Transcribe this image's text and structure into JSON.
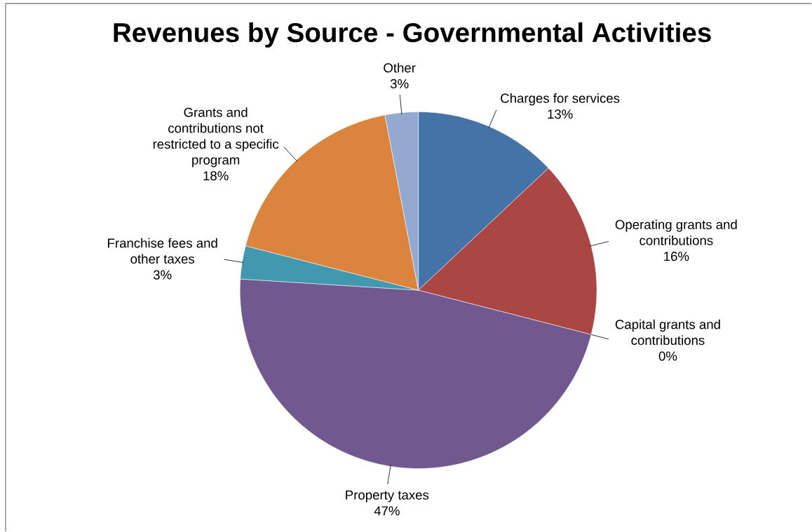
{
  "chart_data": {
    "type": "pie",
    "title": "Revenues by Source - Governmental Activities",
    "categories": [
      "Charges for services",
      "Operating grants and contributions",
      "Capital grants and contributions",
      "Property taxes",
      "Franchise fees and other taxes",
      "Grants and contributions not restricted to a specific program",
      "Other"
    ],
    "values": [
      13,
      16,
      0,
      47,
      3,
      18,
      3
    ],
    "value_labels": [
      "13%",
      "16%",
      "0%",
      "47%",
      "3%",
      "18%",
      "3%"
    ],
    "colors": [
      "#4572a7",
      "#aa4643",
      "#89a54e",
      "#71588f",
      "#4198af",
      "#db843d",
      "#93a9cf"
    ]
  }
}
